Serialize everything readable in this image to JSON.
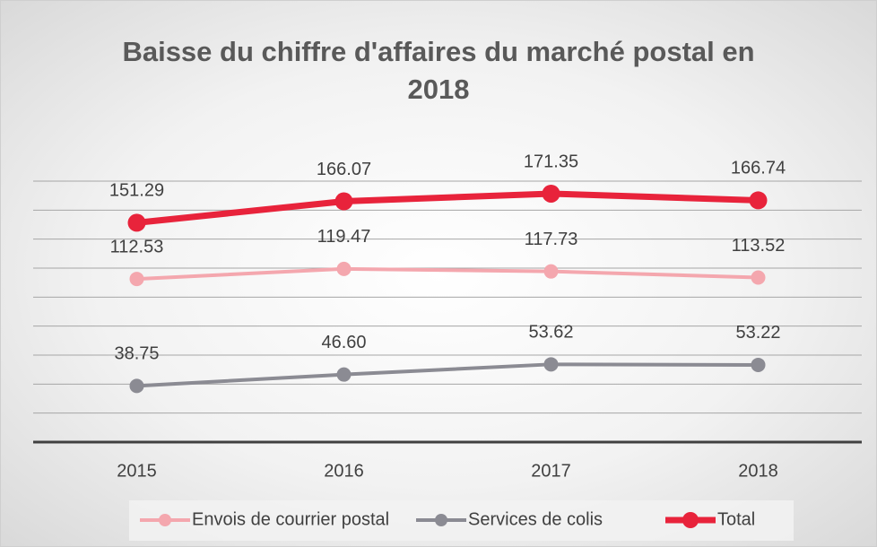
{
  "chart_data": {
    "type": "line",
    "title": "Baisse du chiffre d'affaires du marché postal en 2018",
    "categories": [
      "2015",
      "2016",
      "2017",
      "2018"
    ],
    "series": [
      {
        "name": "Envois de courrier postal",
        "color": "#f4a7ae",
        "values": [
          112.53,
          119.47,
          117.73,
          113.52
        ],
        "value_labels": [
          "112.53",
          "119.47",
          "117.73",
          "113.52"
        ]
      },
      {
        "name": "Services de colis",
        "color": "#8b8b93",
        "values": [
          38.75,
          46.6,
          53.62,
          53.22
        ],
        "value_labels": [
          "38.75",
          "46.60",
          "53.62",
          "53.22"
        ]
      },
      {
        "name": "Total",
        "color": "#e8233b",
        "values": [
          151.29,
          166.07,
          171.35,
          166.74
        ],
        "value_labels": [
          "151.29",
          "166.07",
          "171.35",
          "166.74"
        ]
      }
    ],
    "ylim": [
      0,
      180
    ],
    "yticks": [
      0,
      20,
      40,
      60,
      80,
      100,
      120,
      140,
      160,
      180
    ],
    "grid": true,
    "legend": "bottom"
  }
}
